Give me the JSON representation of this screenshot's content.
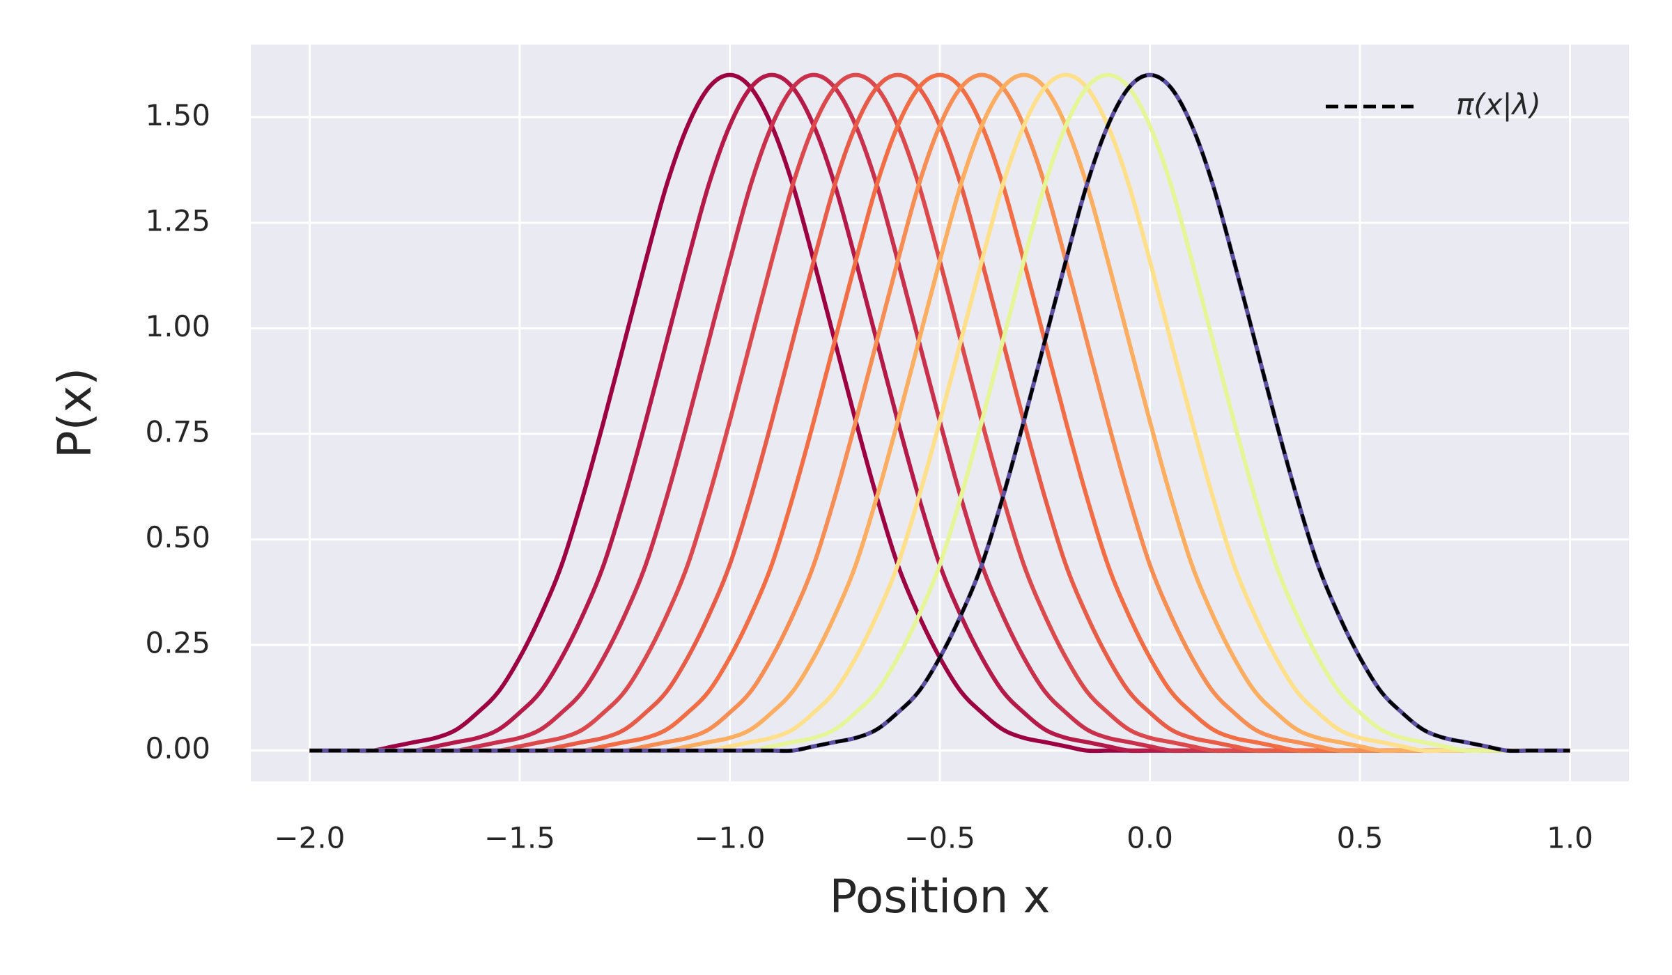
{
  "chart_data": {
    "type": "line",
    "x_label": "Position x",
    "y_label": "P(x)",
    "x": [
      -2,
      -1.95,
      -1.9,
      -1.85,
      -1.8,
      -1.75,
      -1.7,
      -1.65,
      -1.6,
      -1.55,
      -1.5,
      -1.45,
      -1.4,
      -1.35,
      -1.3,
      -1.25,
      -1.2,
      -1.15,
      -1.1,
      -1.05,
      -1,
      -0.95,
      -0.9,
      -0.85,
      -0.8,
      -0.75,
      -0.7,
      -0.65,
      -0.6,
      -0.55,
      -0.5,
      -0.45,
      -0.4,
      -0.35,
      -0.3,
      -0.25,
      -0.2,
      -0.15,
      -0.1,
      -0.05,
      0,
      0.05,
      0.1,
      0.15,
      0.2,
      0.25,
      0.3,
      0.35,
      0.4,
      0.45,
      0.5,
      0.55,
      0.6,
      0.65,
      0.7,
      0.75,
      0.8,
      0.85,
      0.9,
      0.95,
      1
    ],
    "series": [
      {
        "color": "#9e0142",
        "values": [
          0,
          0,
          0,
          0,
          0.01,
          0.02,
          0.03,
          0.05,
          0.09,
          0.14,
          0.22,
          0.32,
          0.44,
          0.6,
          0.78,
          0.97,
          1.16,
          1.34,
          1.48,
          1.57,
          1.6,
          1.57,
          1.48,
          1.34,
          1.16,
          0.97,
          0.78,
          0.6,
          0.44,
          0.32,
          0.22,
          0.14,
          0.09,
          0.05,
          0.03,
          0.02,
          0.01,
          0,
          0,
          0,
          0,
          0,
          0,
          0,
          0,
          0,
          0,
          0,
          0,
          0,
          0,
          0,
          0,
          0,
          0,
          0,
          0,
          0,
          0,
          0,
          0
        ]
      },
      {
        "color": "#b41947",
        "values": [
          0,
          0,
          0,
          0,
          0,
          0,
          0.01,
          0.02,
          0.03,
          0.05,
          0.09,
          0.14,
          0.22,
          0.32,
          0.44,
          0.6,
          0.78,
          0.97,
          1.16,
          1.34,
          1.48,
          1.57,
          1.6,
          1.57,
          1.48,
          1.34,
          1.16,
          0.97,
          0.78,
          0.6,
          0.44,
          0.32,
          0.22,
          0.14,
          0.09,
          0.05,
          0.03,
          0.02,
          0.01,
          0,
          0,
          0,
          0,
          0,
          0,
          0,
          0,
          0,
          0,
          0,
          0,
          0,
          0,
          0,
          0,
          0,
          0,
          0,
          0,
          0,
          0
        ]
      },
      {
        "color": "#c9304c",
        "values": [
          0,
          0,
          0,
          0,
          0,
          0,
          0,
          0,
          0.01,
          0.02,
          0.03,
          0.05,
          0.09,
          0.14,
          0.22,
          0.32,
          0.44,
          0.6,
          0.78,
          0.97,
          1.16,
          1.34,
          1.48,
          1.57,
          1.6,
          1.57,
          1.48,
          1.34,
          1.16,
          0.97,
          0.78,
          0.6,
          0.44,
          0.32,
          0.22,
          0.14,
          0.09,
          0.05,
          0.03,
          0.02,
          0.01,
          0,
          0,
          0,
          0,
          0,
          0,
          0,
          0,
          0,
          0,
          0,
          0,
          0,
          0,
          0,
          0,
          0,
          0,
          0,
          0
        ]
      },
      {
        "color": "#dc494c",
        "values": [
          0,
          0,
          0,
          0,
          0,
          0,
          0,
          0,
          0,
          0,
          0.01,
          0.02,
          0.03,
          0.05,
          0.09,
          0.14,
          0.22,
          0.32,
          0.44,
          0.6,
          0.78,
          0.97,
          1.16,
          1.34,
          1.48,
          1.57,
          1.6,
          1.57,
          1.48,
          1.34,
          1.16,
          0.97,
          0.78,
          0.6,
          0.44,
          0.32,
          0.22,
          0.14,
          0.09,
          0.05,
          0.03,
          0.02,
          0.01,
          0,
          0,
          0,
          0,
          0,
          0,
          0,
          0,
          0,
          0,
          0,
          0,
          0,
          0,
          0,
          0,
          0,
          0
        ]
      },
      {
        "color": "#e85c47",
        "values": [
          0,
          0,
          0,
          0,
          0,
          0,
          0,
          0,
          0,
          0,
          0,
          0,
          0.01,
          0.02,
          0.03,
          0.05,
          0.09,
          0.14,
          0.22,
          0.32,
          0.44,
          0.6,
          0.78,
          0.97,
          1.16,
          1.34,
          1.48,
          1.57,
          1.6,
          1.57,
          1.48,
          1.34,
          1.16,
          0.97,
          0.78,
          0.6,
          0.44,
          0.32,
          0.22,
          0.14,
          0.09,
          0.05,
          0.03,
          0.02,
          0.01,
          0,
          0,
          0,
          0,
          0,
          0,
          0,
          0,
          0,
          0,
          0,
          0,
          0,
          0,
          0,
          0
        ]
      },
      {
        "color": "#f26d43",
        "values": [
          0,
          0,
          0,
          0,
          0,
          0,
          0,
          0,
          0,
          0,
          0,
          0,
          0,
          0,
          0.01,
          0.02,
          0.03,
          0.05,
          0.09,
          0.14,
          0.22,
          0.32,
          0.44,
          0.6,
          0.78,
          0.97,
          1.16,
          1.34,
          1.48,
          1.57,
          1.6,
          1.57,
          1.48,
          1.34,
          1.16,
          0.97,
          0.78,
          0.6,
          0.44,
          0.32,
          0.22,
          0.14,
          0.09,
          0.05,
          0.03,
          0.02,
          0.01,
          0,
          0,
          0,
          0,
          0,
          0,
          0,
          0,
          0,
          0,
          0,
          0,
          0,
          0
        ]
      },
      {
        "color": "#f68d52",
        "values": [
          0,
          0,
          0,
          0,
          0,
          0,
          0,
          0,
          0,
          0,
          0,
          0,
          0,
          0,
          0,
          0,
          0.01,
          0.02,
          0.03,
          0.05,
          0.09,
          0.14,
          0.22,
          0.32,
          0.44,
          0.6,
          0.78,
          0.97,
          1.16,
          1.34,
          1.48,
          1.57,
          1.6,
          1.57,
          1.48,
          1.34,
          1.16,
          0.97,
          0.78,
          0.6,
          0.44,
          0.32,
          0.22,
          0.14,
          0.09,
          0.05,
          0.03,
          0.02,
          0.01,
          0,
          0,
          0,
          0,
          0,
          0,
          0,
          0,
          0,
          0,
          0,
          0
        ]
      },
      {
        "color": "#fbad60",
        "values": [
          0,
          0,
          0,
          0,
          0,
          0,
          0,
          0,
          0,
          0,
          0,
          0,
          0,
          0,
          0,
          0,
          0,
          0,
          0.01,
          0.02,
          0.03,
          0.05,
          0.09,
          0.14,
          0.22,
          0.32,
          0.44,
          0.6,
          0.78,
          0.97,
          1.16,
          1.34,
          1.48,
          1.57,
          1.6,
          1.57,
          1.48,
          1.34,
          1.16,
          0.97,
          0.78,
          0.6,
          0.44,
          0.32,
          0.22,
          0.14,
          0.09,
          0.05,
          0.03,
          0.02,
          0.01,
          0,
          0,
          0,
          0,
          0,
          0,
          0,
          0,
          0,
          0
        ]
      },
      {
        "color": "#fee08b",
        "values": [
          0,
          0,
          0,
          0,
          0,
          0,
          0,
          0,
          0,
          0,
          0,
          0,
          0,
          0,
          0,
          0,
          0,
          0,
          0,
          0,
          0.01,
          0.02,
          0.03,
          0.05,
          0.09,
          0.14,
          0.22,
          0.32,
          0.44,
          0.6,
          0.78,
          0.97,
          1.16,
          1.34,
          1.48,
          1.57,
          1.6,
          1.57,
          1.48,
          1.34,
          1.16,
          0.97,
          0.78,
          0.6,
          0.44,
          0.32,
          0.22,
          0.14,
          0.09,
          0.05,
          0.03,
          0.02,
          0.01,
          0,
          0,
          0,
          0,
          0,
          0,
          0,
          0
        ]
      },
      {
        "color": "#e6f598",
        "values": [
          0,
          0,
          0,
          0,
          0,
          0,
          0,
          0,
          0,
          0,
          0,
          0,
          0,
          0,
          0,
          0,
          0,
          0,
          0,
          0,
          0,
          0,
          0.01,
          0.02,
          0.03,
          0.05,
          0.09,
          0.14,
          0.22,
          0.32,
          0.44,
          0.6,
          0.78,
          0.97,
          1.16,
          1.34,
          1.48,
          1.57,
          1.6,
          1.57,
          1.48,
          1.34,
          1.16,
          0.97,
          0.78,
          0.6,
          0.44,
          0.32,
          0.22,
          0.14,
          0.09,
          0.05,
          0.03,
          0.02,
          0.01,
          0,
          0,
          0,
          0,
          0,
          0
        ]
      },
      {
        "color": "#5e4fa2",
        "values": [
          0,
          0,
          0,
          0,
          0,
          0,
          0,
          0,
          0,
          0,
          0,
          0,
          0,
          0,
          0,
          0,
          0,
          0,
          0,
          0,
          0,
          0,
          0,
          0,
          0.01,
          0.02,
          0.03,
          0.05,
          0.09,
          0.14,
          0.22,
          0.32,
          0.44,
          0.6,
          0.78,
          0.97,
          1.16,
          1.34,
          1.48,
          1.57,
          1.6,
          1.57,
          1.48,
          1.34,
          1.16,
          0.97,
          0.78,
          0.6,
          0.44,
          0.32,
          0.22,
          0.14,
          0.09,
          0.05,
          0.03,
          0.02,
          0.01,
          0,
          0,
          0,
          0
        ]
      },
      {
        "name": "π(x|λ)",
        "color": "#000000",
        "dashed": true,
        "values": [
          0,
          0,
          0,
          0,
          0,
          0,
          0,
          0,
          0,
          0,
          0,
          0,
          0,
          0,
          0,
          0,
          0,
          0,
          0,
          0,
          0,
          0,
          0,
          0,
          0.01,
          0.02,
          0.03,
          0.05,
          0.09,
          0.14,
          0.22,
          0.32,
          0.44,
          0.6,
          0.78,
          0.97,
          1.16,
          1.34,
          1.48,
          1.57,
          1.6,
          1.57,
          1.48,
          1.34,
          1.16,
          0.97,
          0.78,
          0.6,
          0.44,
          0.32,
          0.22,
          0.14,
          0.09,
          0.05,
          0.03,
          0.02,
          0.01,
          0,
          0,
          0,
          0
        ]
      }
    ],
    "xlim": [
      -2.14,
      1.14
    ],
    "ylim": [
      -0.073,
      1.672
    ],
    "xticks": [
      {
        "value": -2,
        "label": "−2.0"
      },
      {
        "value": -1.5,
        "label": "−1.5"
      },
      {
        "value": -1,
        "label": "−1.0"
      },
      {
        "value": -0.5,
        "label": "−0.5"
      },
      {
        "value": 0,
        "label": "0.0"
      },
      {
        "value": 0.5,
        "label": "0.5"
      },
      {
        "value": 1,
        "label": "1.0"
      }
    ],
    "yticks": [
      {
        "value": 0,
        "label": "0.00"
      },
      {
        "value": 0.25,
        "label": "0.25"
      },
      {
        "value": 0.5,
        "label": "0.50"
      },
      {
        "value": 0.75,
        "label": "0.75"
      },
      {
        "value": 1,
        "label": "1.00"
      },
      {
        "value": 1.25,
        "label": "1.25"
      },
      {
        "value": 1.5,
        "label": "1.50"
      }
    ],
    "grid": true,
    "legend": "upper right"
  }
}
